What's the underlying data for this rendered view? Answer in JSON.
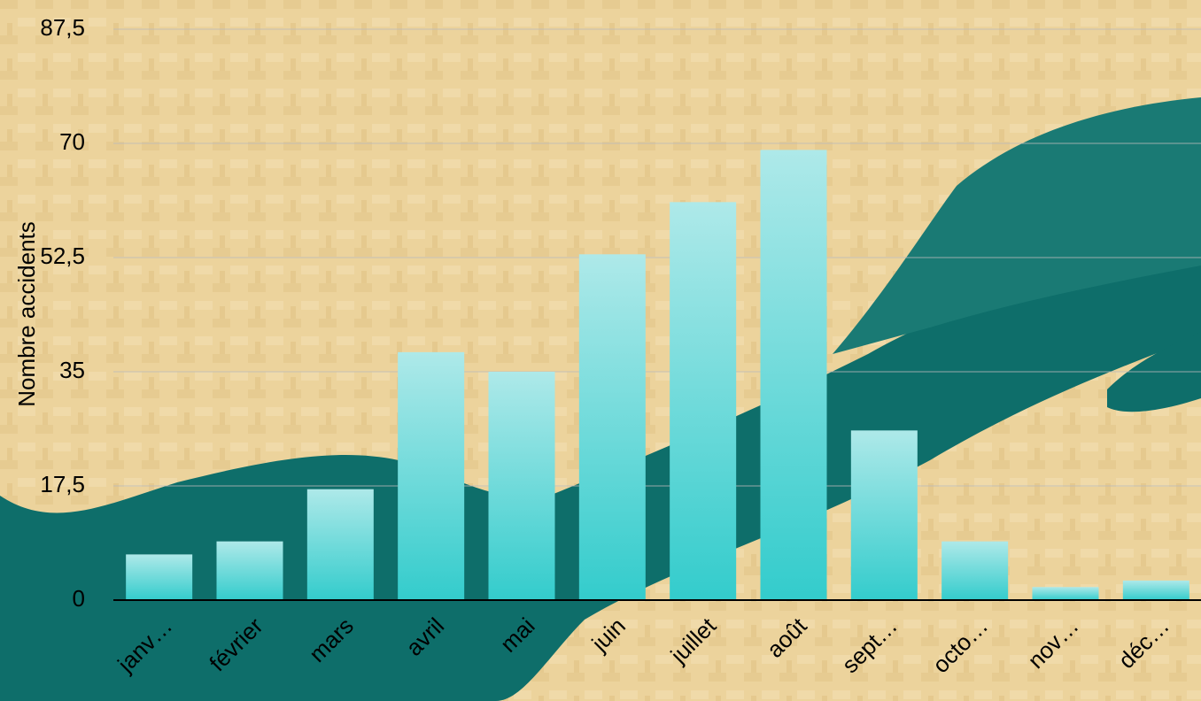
{
  "chart_data": {
    "type": "bar",
    "y_label": "Nombre accidents",
    "categories": [
      "janv…",
      "février",
      "mars",
      "avril",
      "mai",
      "juin",
      "juillet",
      "août",
      "sept…",
      "octo…",
      "nov…",
      "déc…"
    ],
    "values": [
      7,
      9,
      17,
      38,
      35,
      53,
      61,
      69,
      26,
      9,
      2,
      3
    ],
    "color": "#33cccc",
    "ylim": [
      0,
      87.5
    ],
    "yticks": [
      0,
      {
        "value": 17.5,
        "label": "17,5"
      },
      35,
      {
        "value": 52.5,
        "label": "52,5"
      },
      70,
      {
        "value": 87.5,
        "label": "87,5"
      }
    ],
    "grid": true
  }
}
